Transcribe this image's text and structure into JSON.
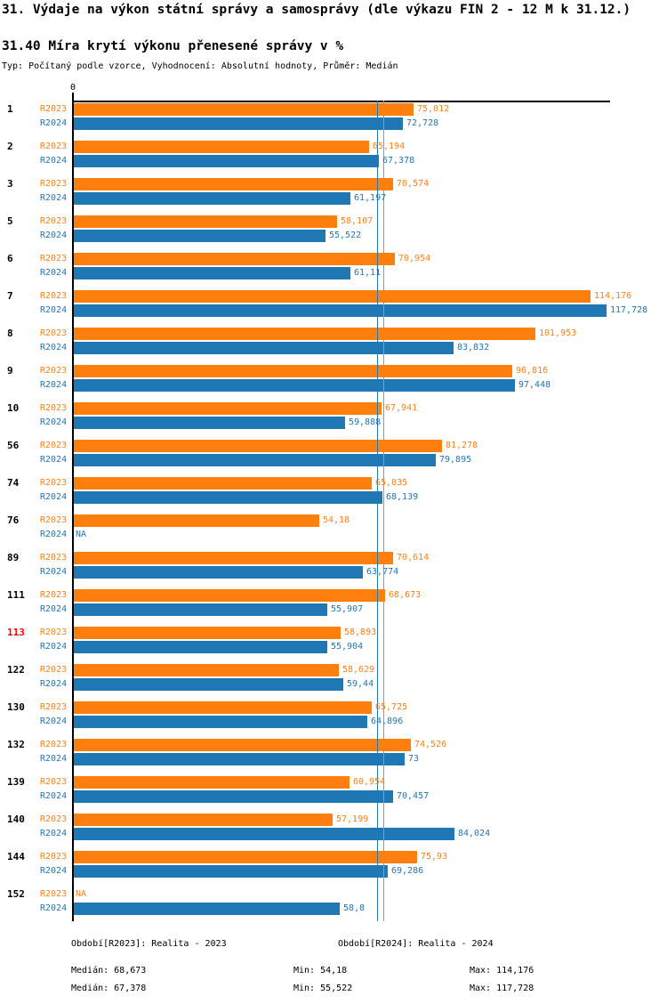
{
  "header": {
    "title": "31. Výdaje na výkon státní správy a samosprávy (dle výkazu FIN 2 - 12 M k 31.12.)",
    "subtitle": "31.40 Míra krytí výkonu přenesené správy v %",
    "meta": "Typ: Počítaný podle vzorce, Vyhodnocení: Absolutní hodnoty, Průměr: Medián"
  },
  "colors": {
    "r2023": "#FF7F0E",
    "r2024": "#1F77B4",
    "highlight_row": "#FF0000",
    "axis": "#000000"
  },
  "chart_data": {
    "type": "bar",
    "orientation": "horizontal",
    "x_axis": {
      "zero_label": "0",
      "xlim": [
        0,
        118.9
      ],
      "grid": false
    },
    "series": [
      {
        "key": "r2023",
        "label": "R2023",
        "color": "#FF7F0E",
        "median": 68.673
      },
      {
        "key": "r2024",
        "label": "R2024",
        "color": "#1F77B4",
        "median": 67.378
      }
    ],
    "rows": [
      {
        "id": "1",
        "highlight": false,
        "r2023": {
          "value": 75.012,
          "label": "75,012"
        },
        "r2024": {
          "value": 72.728,
          "label": "72,728"
        }
      },
      {
        "id": "2",
        "highlight": false,
        "r2023": {
          "value": 65.194,
          "label": "65,194"
        },
        "r2024": {
          "value": 67.378,
          "label": "67,378"
        }
      },
      {
        "id": "3",
        "highlight": false,
        "r2023": {
          "value": 70.574,
          "label": "70,574"
        },
        "r2024": {
          "value": 61.197,
          "label": "61,197"
        }
      },
      {
        "id": "5",
        "highlight": false,
        "r2023": {
          "value": 58.107,
          "label": "58,107"
        },
        "r2024": {
          "value": 55.522,
          "label": "55,522"
        }
      },
      {
        "id": "6",
        "highlight": false,
        "r2023": {
          "value": 70.954,
          "label": "70,954"
        },
        "r2024": {
          "value": 61.11,
          "label": "61,11"
        }
      },
      {
        "id": "7",
        "highlight": false,
        "r2023": {
          "value": 114.176,
          "label": "114,176"
        },
        "r2024": {
          "value": 117.728,
          "label": "117,728"
        }
      },
      {
        "id": "8",
        "highlight": false,
        "r2023": {
          "value": 101.953,
          "label": "101,953"
        },
        "r2024": {
          "value": 83.832,
          "label": "83,832"
        }
      },
      {
        "id": "9",
        "highlight": false,
        "r2023": {
          "value": 96.816,
          "label": "96,816"
        },
        "r2024": {
          "value": 97.448,
          "label": "97,448"
        }
      },
      {
        "id": "10",
        "highlight": false,
        "r2023": {
          "value": 67.941,
          "label": "67,941"
        },
        "r2024": {
          "value": 59.888,
          "label": "59,888"
        }
      },
      {
        "id": "56",
        "highlight": false,
        "r2023": {
          "value": 81.278,
          "label": "81,278"
        },
        "r2024": {
          "value": 79.895,
          "label": "79,895"
        }
      },
      {
        "id": "74",
        "highlight": false,
        "r2023": {
          "value": 65.835,
          "label": "65,835"
        },
        "r2024": {
          "value": 68.139,
          "label": "68,139"
        }
      },
      {
        "id": "76",
        "highlight": false,
        "r2023": {
          "value": 54.18,
          "label": "54,18"
        },
        "r2024": {
          "value": null,
          "label": "NA"
        }
      },
      {
        "id": "89",
        "highlight": false,
        "r2023": {
          "value": 70.614,
          "label": "70,614"
        },
        "r2024": {
          "value": 63.774,
          "label": "63,774"
        }
      },
      {
        "id": "111",
        "highlight": false,
        "r2023": {
          "value": 68.673,
          "label": "68,673"
        },
        "r2024": {
          "value": 55.907,
          "label": "55,907"
        }
      },
      {
        "id": "113",
        "highlight": true,
        "r2023": {
          "value": 58.893,
          "label": "58,893"
        },
        "r2024": {
          "value": 55.904,
          "label": "55,904"
        }
      },
      {
        "id": "122",
        "highlight": false,
        "r2023": {
          "value": 58.629,
          "label": "58,629"
        },
        "r2024": {
          "value": 59.44,
          "label": "59,44"
        }
      },
      {
        "id": "130",
        "highlight": false,
        "r2023": {
          "value": 65.725,
          "label": "65,725"
        },
        "r2024": {
          "value": 64.896,
          "label": "64,896"
        }
      },
      {
        "id": "132",
        "highlight": false,
        "r2023": {
          "value": 74.526,
          "label": "74,526"
        },
        "r2024": {
          "value": 73,
          "label": "73"
        }
      },
      {
        "id": "139",
        "highlight": false,
        "r2023": {
          "value": 60.954,
          "label": "60,954"
        },
        "r2024": {
          "value": 70.457,
          "label": "70,457"
        }
      },
      {
        "id": "140",
        "highlight": false,
        "r2023": {
          "value": 57.199,
          "label": "57,199"
        },
        "r2024": {
          "value": 84.024,
          "label": "84,024"
        }
      },
      {
        "id": "144",
        "highlight": false,
        "r2023": {
          "value": 75.93,
          "label": "75,93"
        },
        "r2024": {
          "value": 69.286,
          "label": "69,286"
        }
      },
      {
        "id": "152",
        "highlight": false,
        "r2023": {
          "value": null,
          "label": "NA"
        },
        "r2024": {
          "value": 58.8,
          "label": "58,8"
        }
      }
    ]
  },
  "legend": {
    "r2023": "Období[R2023]: Realita - 2023",
    "r2024": "Období[R2024]: Realita - 2024"
  },
  "stats": {
    "r2023": {
      "median": "Medián: 68,673",
      "min": "Min: 54,18",
      "max": "Max: 114,176"
    },
    "r2024": {
      "median": "Medián: 67,378",
      "min": "Min: 55,522",
      "max": "Max: 117,728"
    }
  }
}
